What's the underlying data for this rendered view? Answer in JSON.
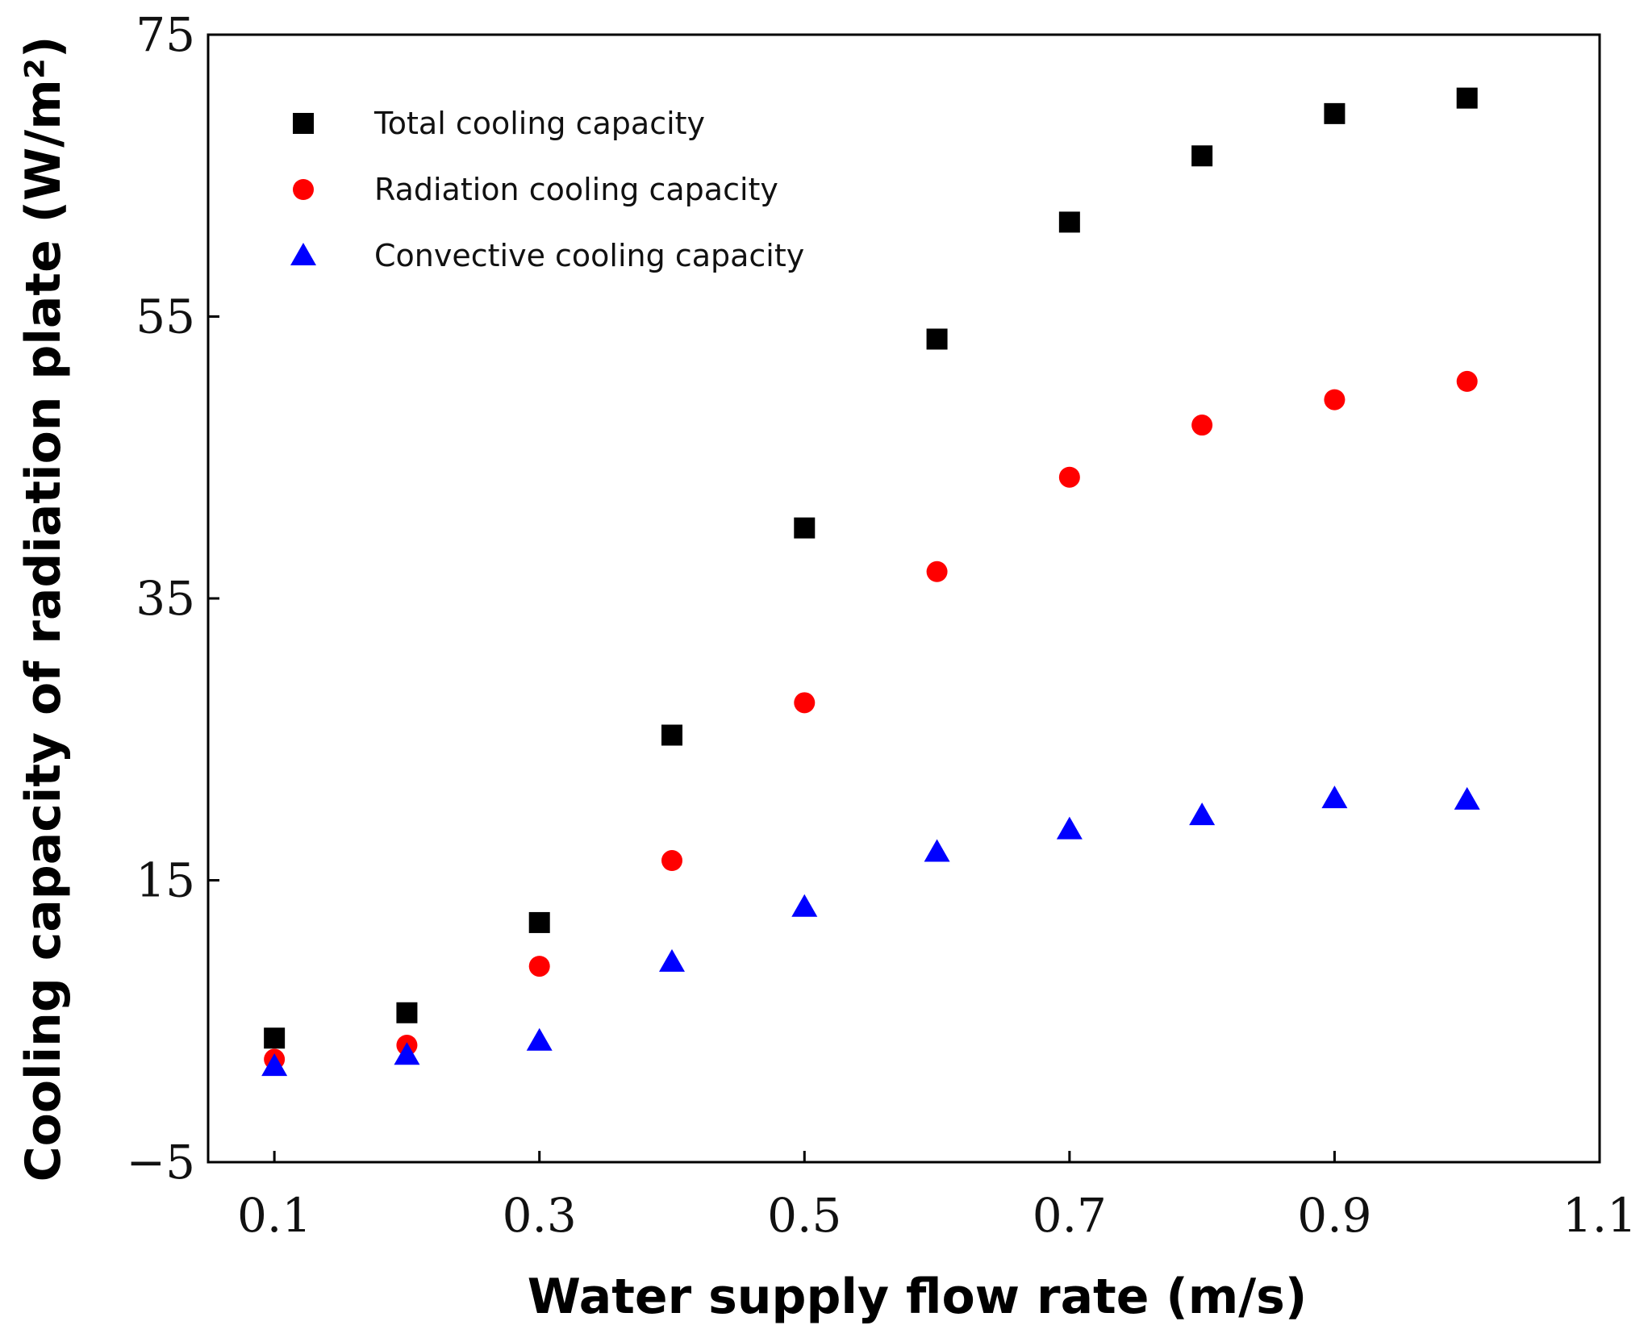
{
  "chart_data": {
    "type": "scatter",
    "title": "",
    "xlabel": "Water supply flow rate (m/s)",
    "ylabel": "Cooling capacity of radiation plate (W/m²)",
    "xlim": [
      0.05,
      1.1
    ],
    "ylim": [
      -5,
      75
    ],
    "xticks": [
      0.1,
      0.3,
      0.5,
      0.7,
      0.9,
      1.1
    ],
    "xtick_labels": [
      "0.1",
      "0.3",
      "0.5",
      "0.7",
      "0.9",
      "1.1"
    ],
    "yticks": [
      -5,
      15,
      35,
      55,
      75
    ],
    "ytick_labels": [
      "−5",
      "15",
      "35",
      "55",
      "75"
    ],
    "grid": false,
    "legend_position": "top-left",
    "x": [
      0.1,
      0.2,
      0.3,
      0.4,
      0.5,
      0.6,
      0.7,
      0.8,
      0.9,
      1.0
    ],
    "series": [
      {
        "name": "Total cooling capacity",
        "marker": "square",
        "color": "#000000",
        "values": [
          3.8,
          5.6,
          12.0,
          25.3,
          40.0,
          53.4,
          61.7,
          66.4,
          69.4,
          70.5
        ]
      },
      {
        "name": "Radiation cooling capacity",
        "marker": "circle",
        "color": "#ff0000",
        "values": [
          2.3,
          3.3,
          8.9,
          16.4,
          27.6,
          36.9,
          43.6,
          47.3,
          49.1,
          50.4
        ]
      },
      {
        "name": "Convective cooling capacity",
        "marker": "triangle",
        "color": "#0000ff",
        "values": [
          1.8,
          2.6,
          3.6,
          9.2,
          13.1,
          17.0,
          18.6,
          19.6,
          20.8,
          20.7
        ]
      }
    ]
  }
}
